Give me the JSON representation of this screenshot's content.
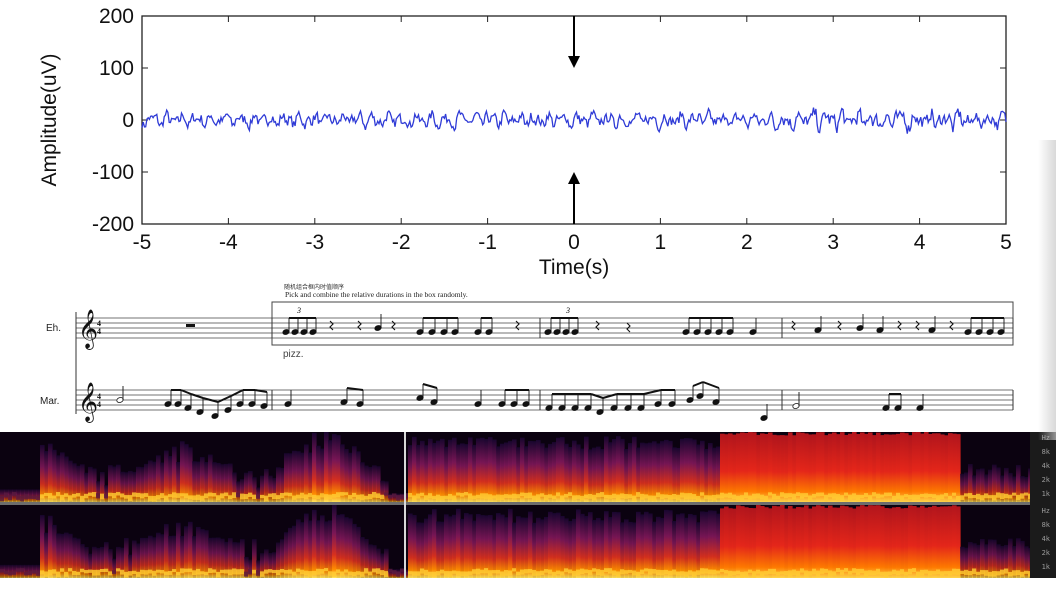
{
  "chart_data": {
    "type": "line",
    "title": "",
    "xlabel": "Time(s)",
    "ylabel": "Amplitude(uV)",
    "xlim": [
      -5,
      5
    ],
    "ylim": [
      -200,
      200
    ],
    "x_ticks": [
      "-5",
      "-4",
      "-3",
      "-2",
      "-1",
      "0",
      "1",
      "2",
      "3",
      "4",
      "5"
    ],
    "y_ticks": [
      "200",
      "100",
      "0",
      "-100",
      "-200"
    ],
    "grid": false,
    "series": [
      {
        "color": "#2f3bd6",
        "style": "noisy signal around 0 uV, amplitude roughly ±20 uV"
      }
    ],
    "annotations": [
      {
        "type": "arrow-down",
        "x": 0,
        "y_from": 200,
        "y_to": 100
      },
      {
        "type": "arrow-up",
        "x": 0,
        "y_from": -200,
        "y_to": -100
      }
    ]
  },
  "score": {
    "caption_cn": "随机组合框内时值顺序",
    "caption_en": "Pick and combine the relative durations in the box randomly.",
    "instrument_1": "Eh.",
    "instrument_2": "Mar.",
    "time_signature_top": "4",
    "time_signature_bottom": "4",
    "marking": "pizz.",
    "tuplet": "3"
  },
  "spectrogram": {
    "colormap": [
      "#000000",
      "#3a0b5c",
      "#8b1a5a",
      "#e03a1e",
      "#ff8c00",
      "#ffe45c"
    ],
    "hz_labels": [
      "Hz",
      "8k",
      "4k",
      "2k",
      "1k"
    ]
  }
}
